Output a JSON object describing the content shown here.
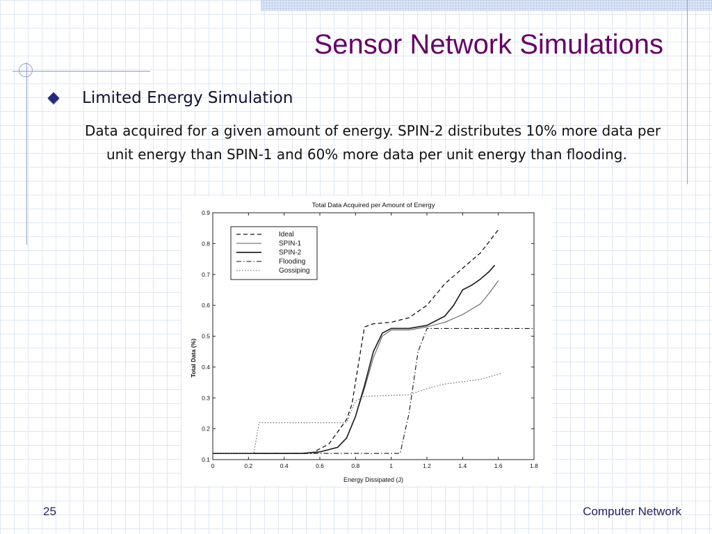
{
  "slide": {
    "title": "Sensor Network Simulations",
    "bullet": "Limited Energy Simulation",
    "subtext": "Data acquired for a given amount of energy. SPIN-2 distributes 10% more data per unit energy than SPIN-1 and 60% more data per unit energy than flooding.",
    "page_number": "25",
    "footer": "Computer Network"
  },
  "chart_data": {
    "type": "line",
    "title": "Total Data Acquired per Amount of Energy",
    "xlabel": "Energy Dissipated (J)",
    "ylabel": "Total Data (%)",
    "xlim": [
      0,
      1.8
    ],
    "ylim": [
      0.1,
      0.9
    ],
    "xticks": [
      "0",
      "0.2",
      "0.4",
      "0.6",
      "0.8",
      "1",
      "1.2",
      "1.4",
      "1.6",
      "1.8"
    ],
    "yticks": [
      "0.1",
      "0.2",
      "0.3",
      "0.4",
      "0.5",
      "0.6",
      "0.7",
      "0.8",
      "0.9"
    ],
    "grid": false,
    "legend_position": "top-left",
    "series": [
      {
        "name": "Ideal",
        "style": "dashed",
        "x": [
          0,
          0.55,
          0.65,
          0.7,
          0.75,
          0.78,
          0.85,
          0.9,
          1.0,
          1.1,
          1.2,
          1.3,
          1.4,
          1.5,
          1.6
        ],
        "y": [
          0.12,
          0.12,
          0.15,
          0.19,
          0.23,
          0.28,
          0.53,
          0.54,
          0.545,
          0.56,
          0.6,
          0.67,
          0.72,
          0.77,
          0.845
        ]
      },
      {
        "name": "SPIN-1",
        "style": "solid",
        "x": [
          0,
          0.5,
          0.6,
          0.7,
          0.75,
          0.8,
          0.85,
          0.9,
          0.95,
          1.0,
          1.1,
          1.2,
          1.3,
          1.4,
          1.5,
          1.55,
          1.6
        ],
        "y": [
          0.12,
          0.12,
          0.125,
          0.14,
          0.17,
          0.24,
          0.33,
          0.43,
          0.5,
          0.52,
          0.52,
          0.53,
          0.545,
          0.57,
          0.605,
          0.64,
          0.68
        ]
      },
      {
        "name": "SPIN-2",
        "style": "solid-dots",
        "x": [
          0,
          0.5,
          0.6,
          0.7,
          0.75,
          0.8,
          0.85,
          0.9,
          0.95,
          1.0,
          1.1,
          1.2,
          1.3,
          1.35,
          1.4,
          1.45,
          1.5,
          1.55,
          1.58
        ],
        "y": [
          0.12,
          0.12,
          0.125,
          0.14,
          0.17,
          0.24,
          0.34,
          0.45,
          0.51,
          0.525,
          0.525,
          0.535,
          0.565,
          0.6,
          0.65,
          0.665,
          0.685,
          0.71,
          0.73
        ]
      },
      {
        "name": "Flooding",
        "style": "dashdot",
        "x": [
          0,
          1.05,
          1.1,
          1.15,
          1.2,
          1.8
        ],
        "y": [
          0.12,
          0.12,
          0.25,
          0.45,
          0.525,
          0.525
        ]
      },
      {
        "name": "Gossiping",
        "style": "dotted",
        "x": [
          0,
          0.23,
          0.26,
          0.75,
          0.8,
          0.85,
          1.1,
          1.2,
          1.3,
          1.5,
          1.62
        ],
        "y": [
          0.12,
          0.12,
          0.22,
          0.22,
          0.29,
          0.305,
          0.31,
          0.33,
          0.345,
          0.36,
          0.38
        ]
      }
    ]
  }
}
